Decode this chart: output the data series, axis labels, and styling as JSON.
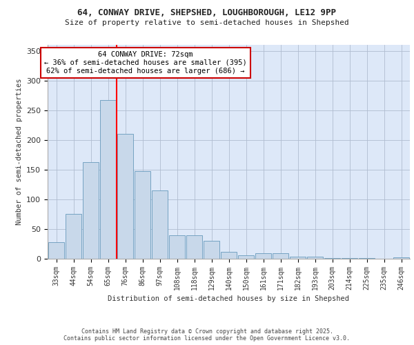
{
  "title_line1": "64, CONWAY DRIVE, SHEPSHED, LOUGHBOROUGH, LE12 9PP",
  "title_line2": "Size of property relative to semi-detached houses in Shepshed",
  "xlabel": "Distribution of semi-detached houses by size in Shepshed",
  "ylabel": "Number of semi-detached properties",
  "categories": [
    "33sqm",
    "44sqm",
    "54sqm",
    "65sqm",
    "76sqm",
    "86sqm",
    "97sqm",
    "108sqm",
    "118sqm",
    "129sqm",
    "140sqm",
    "150sqm",
    "161sqm",
    "171sqm",
    "182sqm",
    "193sqm",
    "203sqm",
    "214sqm",
    "225sqm",
    "235sqm",
    "246sqm"
  ],
  "values": [
    28,
    75,
    163,
    267,
    210,
    147,
    115,
    40,
    40,
    30,
    12,
    6,
    9,
    9,
    4,
    3,
    1,
    1,
    1,
    0,
    2
  ],
  "bar_color": "#c8d8ea",
  "bar_edge_color": "#6699bb",
  "red_line_x": 3.5,
  "annotation_text": "64 CONWAY DRIVE: 72sqm\n← 36% of semi-detached houses are smaller (395)\n62% of semi-detached houses are larger (686) →",
  "annotation_box_facecolor": "#ffffff",
  "annotation_box_edgecolor": "#cc0000",
  "ylim": [
    0,
    360
  ],
  "yticks": [
    0,
    50,
    100,
    150,
    200,
    250,
    300,
    350
  ],
  "plot_bg_color": "#dde8f8",
  "footer_line1": "Contains HM Land Registry data © Crown copyright and database right 2025.",
  "footer_line2": "Contains public sector information licensed under the Open Government Licence v3.0."
}
